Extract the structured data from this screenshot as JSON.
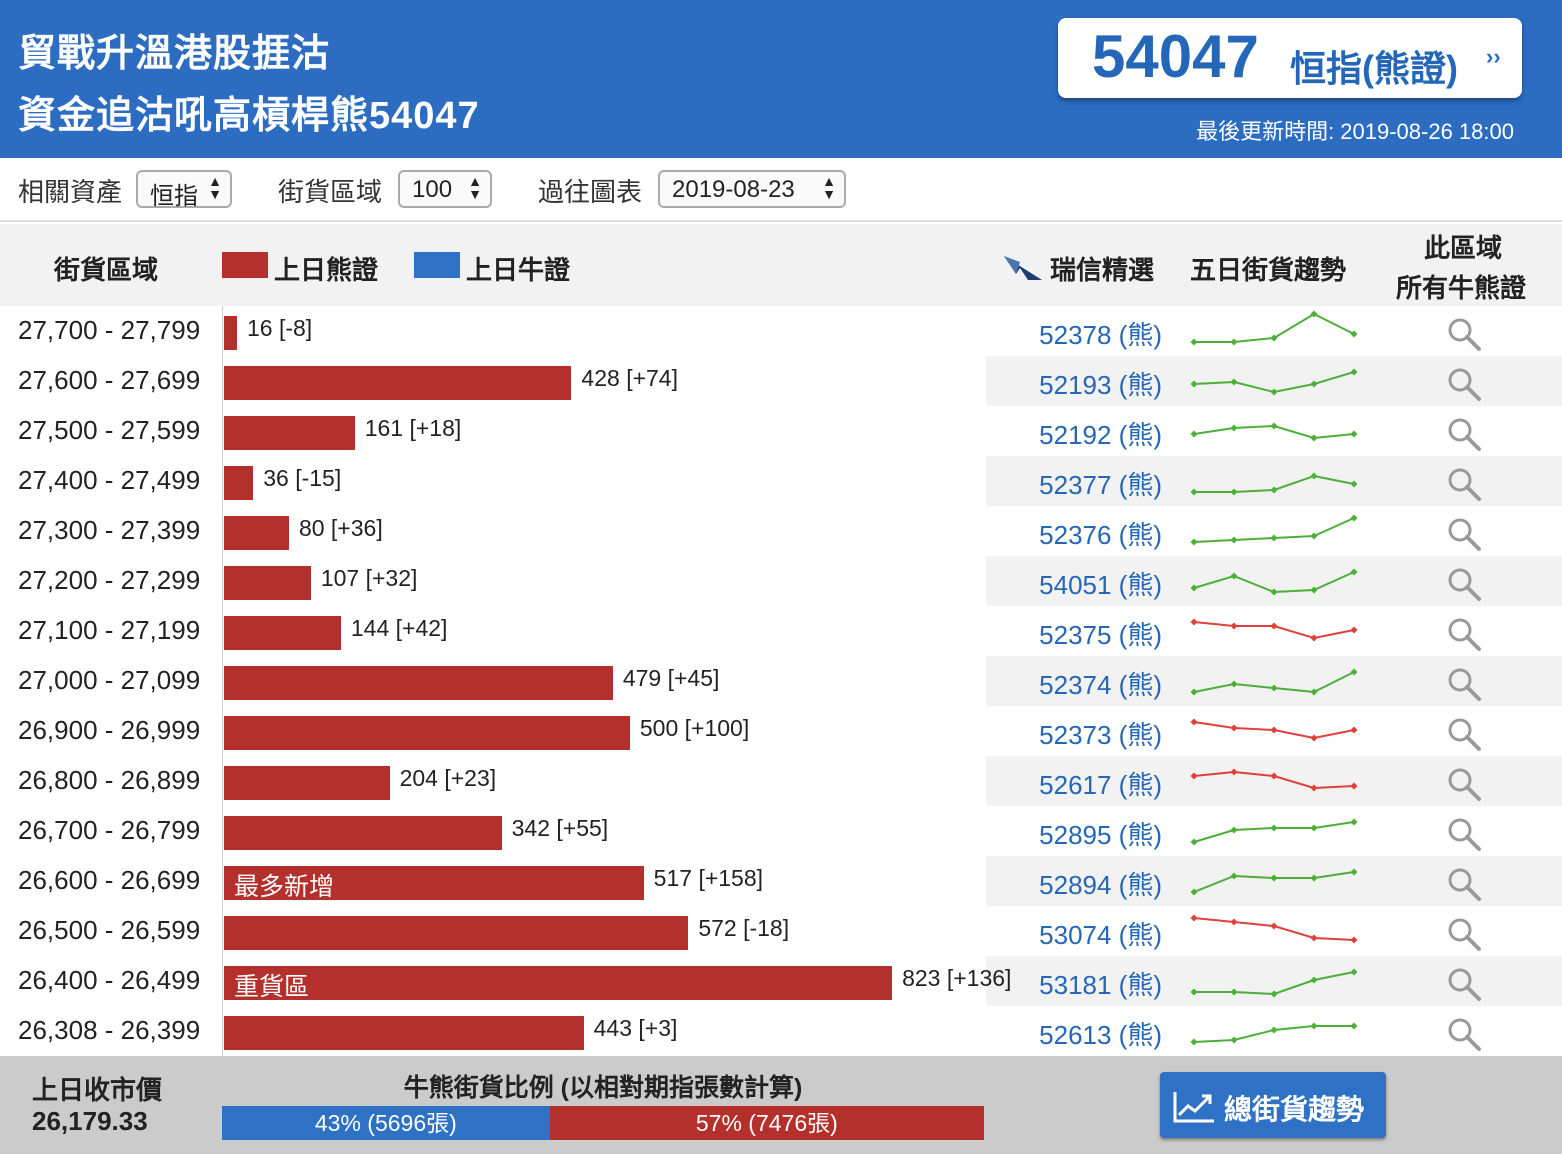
{
  "header": {
    "title_line1": "貿戰升溫港股捱沽",
    "title_line2": "資金追沽吼高槓桿熊54047",
    "featured_code": "54047",
    "featured_name": "恒指(熊證)",
    "featured_arrow": "››",
    "update_time": "最後更新時間: 2019-08-26 18:00"
  },
  "filters": {
    "asset_label": "相關資產",
    "asset_value": "恒指",
    "zone_label": "街貨區域",
    "zone_value": "100",
    "chart_label": "過往圖表",
    "chart_value": "2019-08-23"
  },
  "columns": {
    "zone": "街貨區域",
    "legend_bear": "上日熊證",
    "legend_bull": "上日牛證",
    "ubs_pick": "瑞信精選",
    "trend": "五日街貨趨勢",
    "all_line1": "此區域",
    "all_line2": "所有牛熊證"
  },
  "colors": {
    "header_bg": "#2c6dc2",
    "bear": "#b3302c",
    "bull": "#2f71c5",
    "trend_up": "#4caf3a",
    "trend_down": "#e0403a",
    "link": "#2466b8"
  },
  "chart_data": {
    "type": "bar",
    "orientation": "horizontal",
    "series_name": "上日熊證",
    "xlim": [
      0,
      850
    ],
    "rows": [
      {
        "range": "27,700 - 27,799",
        "value": 16,
        "change": "[-8]",
        "tag": "",
        "code": "52378 (熊)",
        "trend_dir": "up",
        "trend": [
          2,
          2,
          3,
          9,
          4
        ]
      },
      {
        "range": "27,600 - 27,699",
        "value": 428,
        "change": "[+74]",
        "tag": "",
        "code": "52193 (熊)",
        "trend_dir": "up",
        "trend": [
          4,
          4.5,
          2,
          4,
          7
        ]
      },
      {
        "range": "27,500 - 27,599",
        "value": 161,
        "change": "[+18]",
        "tag": "",
        "code": "52192 (熊)",
        "trend_dir": "up",
        "trend": [
          4,
          5.5,
          6,
          3,
          4
        ]
      },
      {
        "range": "27,400 - 27,499",
        "value": 36,
        "change": "[-15]",
        "tag": "",
        "code": "52377 (熊)",
        "trend_dir": "up",
        "trend": [
          2,
          2,
          2.5,
          6,
          4
        ]
      },
      {
        "range": "27,300 - 27,399",
        "value": 80,
        "change": "[+36]",
        "tag": "",
        "code": "52376 (熊)",
        "trend_dir": "up",
        "trend": [
          2,
          2.5,
          3,
          3.5,
          8
        ]
      },
      {
        "range": "27,200 - 27,299",
        "value": 107,
        "change": "[+32]",
        "tag": "",
        "code": "54051 (熊)",
        "trend_dir": "up",
        "trend": [
          3,
          6,
          2,
          2.5,
          7
        ]
      },
      {
        "range": "27,100 - 27,199",
        "value": 144,
        "change": "[+42]",
        "tag": "",
        "code": "52375 (熊)",
        "trend_dir": "down",
        "trend": [
          7,
          6,
          6,
          3,
          5
        ]
      },
      {
        "range": "27,000 - 27,099",
        "value": 479,
        "change": "[+45]",
        "tag": "",
        "code": "52374 (熊)",
        "trend_dir": "up",
        "trend": [
          2,
          4,
          3,
          2,
          7
        ]
      },
      {
        "range": "26,900 - 26,999",
        "value": 500,
        "change": "[+100]",
        "tag": "",
        "code": "52373 (熊)",
        "trend_dir": "down",
        "trend": [
          7,
          5.5,
          5,
          3,
          5
        ]
      },
      {
        "range": "26,800 - 26,899",
        "value": 204,
        "change": "[+23]",
        "tag": "",
        "code": "52617 (熊)",
        "trend_dir": "down",
        "trend": [
          6,
          7,
          6,
          3,
          3.5
        ]
      },
      {
        "range": "26,700 - 26,799",
        "value": 342,
        "change": "[+55]",
        "tag": "",
        "code": "52895 (熊)",
        "trend_dir": "up",
        "trend": [
          2,
          5,
          5.5,
          5.5,
          7
        ]
      },
      {
        "range": "26,600 - 26,699",
        "value": 517,
        "change": "[+158]",
        "tag": "最多新增",
        "code": "52894 (熊)",
        "trend_dir": "up",
        "trend": [
          2,
          6,
          5.5,
          5.5,
          7
        ]
      },
      {
        "range": "26,500 - 26,599",
        "value": 572,
        "change": "[-18]",
        "tag": "",
        "code": "53074 (熊)",
        "trend_dir": "down",
        "trend": [
          8,
          7,
          6,
          3,
          2.5
        ]
      },
      {
        "range": "26,400 - 26,499",
        "value": 823,
        "change": "[+136]",
        "tag": "重貨區",
        "code": "53181 (熊)",
        "trend_dir": "up",
        "trend": [
          2,
          2,
          1.5,
          5,
          7
        ]
      },
      {
        "range": "26,308 - 26,399",
        "value": 443,
        "change": "[+3]",
        "tag": "",
        "code": "52613 (熊)",
        "trend_dir": "up",
        "trend": [
          2,
          2.5,
          5,
          6,
          6
        ]
      }
    ]
  },
  "footer": {
    "prev_close_label": "上日收市價",
    "prev_close_value": "26,179.33",
    "ratio_title": "牛熊街貨比例 (以相對期指張數計算)",
    "bull_pct": 43,
    "bull_label": "43% (5696張)",
    "bear_pct": 57,
    "bear_label": "57% (7476張)",
    "trend_button": "總街貨趨勢"
  }
}
